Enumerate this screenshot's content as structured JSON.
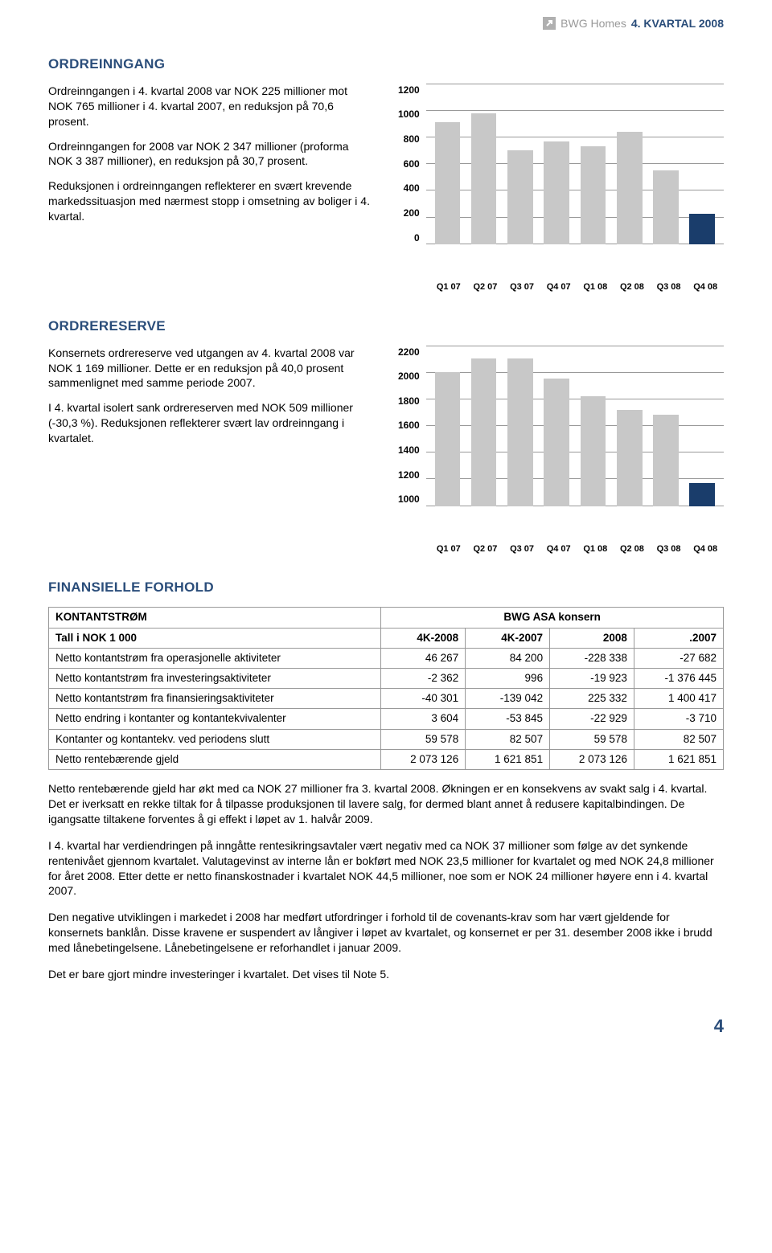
{
  "header": {
    "company": "BWG Homes",
    "quarter": "4. KVARTAL 2008",
    "icon_color": "#b0b0b0",
    "icon_arrow_color": "#ffffff",
    "company_color": "#999999",
    "quarter_color": "#2a4d7a"
  },
  "page_number": "4",
  "section1": {
    "title": "ORDREINNGANG",
    "p1": "Ordreinngangen i 4. kvartal 2008 var NOK 225 millioner mot NOK 765 millioner i 4. kvartal 2007, en reduksjon på 70,6 prosent.",
    "p2": "Ordreinngangen for 2008 var NOK 2 347 millioner (proforma NOK 3 387 millioner), en reduksjon på 30,7 prosent.",
    "p3": "Reduksjonen i ordreinngangen reflekterer en svært krevende markedssituasjon med nærmest stopp i omsetning av boliger i 4. kvartal."
  },
  "chart1": {
    "type": "bar",
    "categories": [
      "Q1 07",
      "Q2 07",
      "Q3 07",
      "Q4 07",
      "Q1 08",
      "Q2 08",
      "Q3 08",
      "Q4 08"
    ],
    "values": [
      910,
      980,
      700,
      765,
      730,
      840,
      550,
      225
    ],
    "bar_colors": [
      "#c8c8c8",
      "#c8c8c8",
      "#c8c8c8",
      "#c8c8c8",
      "#c8c8c8",
      "#c8c8c8",
      "#c8c8c8",
      "#1a3d6b"
    ],
    "ylim": [
      0,
      1200
    ],
    "ytick_step": 200,
    "yticks": [
      "1200",
      "1000",
      "800",
      "600",
      "400",
      "200",
      "0"
    ],
    "grid_color": "#999999",
    "background_color": "#ffffff",
    "bar_width": 0.7,
    "label_fontsize": 12,
    "axis_fontweight": "bold"
  },
  "section2": {
    "title": "ORDRERESERVE",
    "p1": "Konsernets ordrereserve ved utgangen av 4. kvartal 2008 var NOK 1 169 millioner. Dette er en reduksjon på 40,0 prosent sammenlignet med samme periode 2007.",
    "p2": "I 4. kvartal isolert sank ordrereserven med NOK 509 millioner (-30,3 %). Reduksjonen reflekterer svært lav ordreinngang i kvartalet."
  },
  "chart2": {
    "type": "bar",
    "categories": [
      "Q1 07",
      "Q2 07",
      "Q3 07",
      "Q4 07",
      "Q1 08",
      "Q2 08",
      "Q3 08",
      "Q4 08"
    ],
    "values": [
      2000,
      2100,
      2100,
      1950,
      1820,
      1720,
      1680,
      1169
    ],
    "bar_colors": [
      "#c8c8c8",
      "#c8c8c8",
      "#c8c8c8",
      "#c8c8c8",
      "#c8c8c8",
      "#c8c8c8",
      "#c8c8c8",
      "#1a3d6b"
    ],
    "ylim": [
      1000,
      2200
    ],
    "ytick_step": 200,
    "yticks": [
      "2200",
      "2000",
      "1800",
      "1600",
      "1400",
      "1200",
      "1000"
    ],
    "grid_color": "#999999",
    "background_color": "#ffffff",
    "bar_width": 0.7,
    "label_fontsize": 12,
    "axis_fontweight": "bold"
  },
  "section3": {
    "title": "FINANSIELLE FORHOLD",
    "table_title": "KONTANTSTRØM",
    "konsern_header": "BWG ASA konsern",
    "sub_label": "Tall i NOK 1 000",
    "columns": [
      "4K-2008",
      "4K-2007",
      "2008",
      ".2007"
    ],
    "rows": [
      {
        "label": "Netto kontantstrøm fra operasjonelle aktiviteter",
        "cells": [
          "46 267",
          "84 200",
          "-228 338",
          "-27 682"
        ]
      },
      {
        "label": "Netto kontantstrøm fra investeringsaktiviteter",
        "cells": [
          "-2 362",
          "996",
          "-19 923",
          "-1 376 445"
        ]
      },
      {
        "label": "Netto kontantstrøm fra finansieringsaktiviteter",
        "cells": [
          "-40 301",
          "-139 042",
          "225 332",
          "1 400 417"
        ]
      },
      {
        "label": "Netto endring i kontanter og kontantekvivalenter",
        "cells": [
          "3 604",
          "-53 845",
          "-22 929",
          "-3 710"
        ]
      },
      {
        "label": "Kontanter og kontantekv. ved periodens slutt",
        "cells": [
          "59 578",
          "82 507",
          "59 578",
          "82 507"
        ]
      },
      {
        "label": "Netto rentebærende gjeld",
        "cells": [
          "2 073 126",
          "1 621 851",
          "2 073 126",
          "1 621 851"
        ]
      }
    ],
    "border_color": "#999999"
  },
  "body": {
    "p1": "Netto rentebærende gjeld har økt med ca NOK 27 millioner fra 3. kvartal 2008. Økningen er en konsekvens av svakt salg i 4. kvartal. Det er iverksatt en rekke tiltak for å tilpasse produksjonen til lavere salg, for dermed blant annet å redusere kapitalbindingen. De igangsatte tiltakene forventes å gi effekt i løpet av 1. halvår 2009.",
    "p2": "I 4. kvartal har verdiendringen på inngåtte rentesikringsavtaler vært negativ med ca NOK 37 millioner som følge av det synkende rentenivået gjennom kvartalet. Valutagevinst av interne lån er bokført med NOK 23,5 millioner for kvartalet og med NOK 24,8 millioner for året 2008. Etter dette er netto finanskostnader i kvartalet NOK 44,5 millioner, noe som er NOK 24 millioner høyere enn i 4. kvartal 2007.",
    "p3": "Den negative utviklingen i markedet i 2008 har medført utfordringer i forhold til de covenants-krav som har vært gjeldende for konsernets banklån. Disse kravene er suspendert av långiver i løpet av kvartalet, og konsernet er per 31. desember 2008 ikke i brudd med lånebetingelsene. Lånebetingelsene er reforhandlet i januar 2009.",
    "p4": "Det er bare gjort mindre investeringer i kvartalet. Det vises til Note 5."
  }
}
